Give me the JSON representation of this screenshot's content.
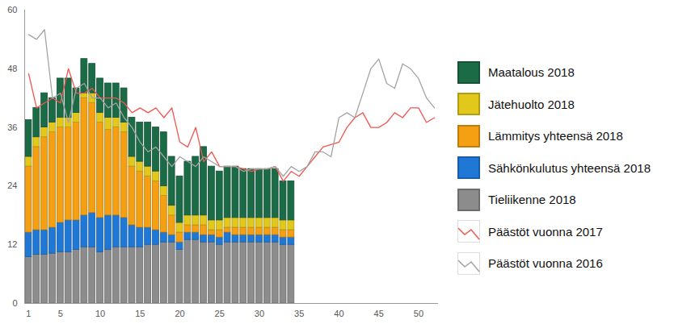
{
  "chart_data": {
    "type": "bar",
    "stacked": true,
    "grid": false,
    "legend": "right",
    "x": [
      1,
      2,
      3,
      4,
      5,
      6,
      7,
      8,
      9,
      10,
      11,
      12,
      13,
      14,
      15,
      16,
      17,
      18,
      19,
      20,
      21,
      22,
      23,
      24,
      25,
      26,
      27,
      28,
      29,
      30,
      31,
      32,
      33,
      34,
      35,
      36,
      37,
      38,
      39,
      40,
      41,
      42,
      43,
      44,
      45,
      46,
      47,
      48,
      49,
      50,
      51,
      52
    ],
    "xlim": [
      0.5,
      52.5
    ],
    "xticks": [
      1,
      5,
      10,
      15,
      20,
      25,
      30,
      35,
      40,
      45,
      50
    ],
    "ylim": [
      0,
      60
    ],
    "yticks": [
      0,
      12,
      24,
      36,
      48,
      60
    ],
    "series": [
      {
        "name": "Maatalous 2018",
        "type": "bar",
        "color": "#1b6b47",
        "values": [
          7.5,
          6,
          7,
          5,
          8,
          8,
          5,
          7,
          6,
          7,
          7,
          7,
          7,
          8,
          8,
          9,
          9,
          11,
          10,
          9.5,
          11,
          12,
          14,
          11,
          10,
          10.5,
          10.5,
          10,
          10,
          10,
          10,
          10,
          8,
          8,
          null,
          null,
          null,
          null,
          null,
          null,
          null,
          null,
          null,
          null,
          null,
          null,
          null,
          null,
          null,
          null,
          null,
          null
        ]
      },
      {
        "name": "Jätehuolto 2018",
        "type": "bar",
        "color": "#e3c81c",
        "values": [
          2,
          2,
          2,
          2,
          2,
          2,
          2,
          1,
          2,
          2,
          2.5,
          2,
          2,
          2,
          2,
          2,
          2,
          2,
          2,
          2,
          2,
          2,
          2,
          2,
          2,
          2,
          2,
          2,
          2,
          2,
          2,
          2,
          2,
          2,
          null,
          null,
          null,
          null,
          null,
          null,
          null,
          null,
          null,
          null,
          null,
          null,
          null,
          null,
          null,
          null,
          null,
          null
        ]
      },
      {
        "name": "Lämmitys yhteensä 2018",
        "type": "bar",
        "color": "#f5a012",
        "values": [
          13.5,
          17,
          19,
          19.5,
          19.5,
          19,
          20,
          24,
          22.5,
          19.5,
          17.5,
          18,
          17.5,
          12,
          11.5,
          10.5,
          10,
          7.5,
          4,
          2,
          1.5,
          1.5,
          2,
          1,
          1.5,
          1,
          1.5,
          1.5,
          1.5,
          1.5,
          1.5,
          1.5,
          1.5,
          1.5,
          null,
          null,
          null,
          null,
          null,
          null,
          null,
          null,
          null,
          null,
          null,
          null,
          null,
          null,
          null,
          null,
          null,
          null
        ]
      },
      {
        "name": "Sähkönkulutus yhteensä 2018",
        "type": "bar",
        "color": "#1f78d6",
        "values": [
          5,
          5,
          5,
          5.3,
          6,
          6.5,
          6,
          6.5,
          7,
          7,
          7,
          6.5,
          6,
          4.5,
          4,
          3.5,
          3,
          2,
          1.5,
          1.5,
          1.5,
          1.5,
          1.5,
          1.5,
          1.5,
          2,
          1.5,
          1.5,
          1.5,
          1.5,
          1.5,
          1.5,
          1.5,
          1.5,
          null,
          null,
          null,
          null,
          null,
          null,
          null,
          null,
          null,
          null,
          null,
          null,
          null,
          null,
          null,
          null,
          null,
          null
        ]
      },
      {
        "name": "Tieliikenne 2018",
        "type": "bar",
        "color": "#8c8c8c",
        "values": [
          9.5,
          10,
          10,
          10.2,
          10.5,
          10.5,
          11,
          11.5,
          11.5,
          10.5,
          11,
          11.5,
          11.5,
          11.5,
          11.5,
          12,
          12,
          12.5,
          12.5,
          11,
          13,
          13,
          12.5,
          12.5,
          12,
          12.5,
          12.5,
          12.5,
          12.5,
          12.5,
          12.5,
          12.5,
          12,
          12,
          null,
          null,
          null,
          null,
          null,
          null,
          null,
          null,
          null,
          null,
          null,
          null,
          null,
          null,
          null,
          null,
          null,
          null
        ]
      },
      {
        "name": "Päästöt vuonna 2017",
        "type": "line",
        "color": "#f0564f",
        "values": [
          47,
          40,
          41,
          42,
          41,
          48,
          43,
          43,
          44,
          42,
          42,
          42,
          41,
          39,
          40,
          39,
          40,
          38,
          40,
          33,
          32,
          36,
          29,
          31,
          28,
          28,
          28,
          27.5,
          27,
          27.5,
          27.5,
          28,
          25,
          27,
          26,
          28,
          30,
          32,
          32.5,
          33,
          36,
          38,
          39,
          36,
          36,
          37,
          39,
          38,
          40,
          40,
          37,
          38
        ]
      },
      {
        "name": "Päästöt vuonna 2016",
        "type": "line",
        "color": "#a3a3a3",
        "values": [
          55,
          54,
          56,
          42,
          43,
          37,
          44,
          45,
          42,
          42,
          40,
          41,
          38,
          36,
          33,
          31,
          32,
          30,
          28,
          30,
          29,
          28,
          30,
          29,
          28,
          28,
          28,
          27,
          27.5,
          27.5,
          27.5,
          28,
          26,
          28,
          27,
          28,
          31,
          31,
          30,
          38,
          39,
          38,
          43,
          48,
          50,
          45,
          44,
          49,
          48,
          46,
          42,
          40
        ]
      }
    ]
  }
}
